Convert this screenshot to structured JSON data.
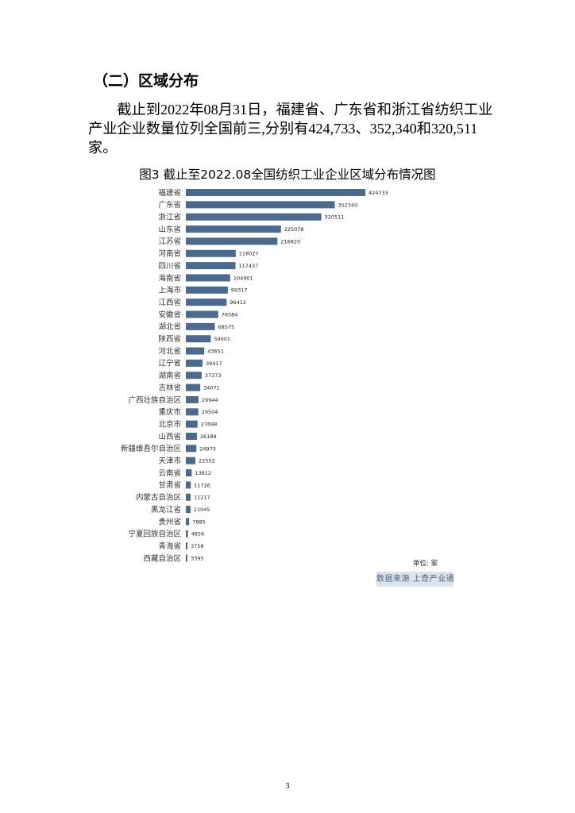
{
  "section": {
    "heading": "（二）区域分布",
    "paragraph": "截止到2022年08月31日，福建省、广东省和浙江省纺织工业产业企业数量位列全国前三,分别有424,733、352,340和320,511家。"
  },
  "chart_data": {
    "type": "bar",
    "orientation": "horizontal",
    "title": "图3 截止至2022.08全国纺织工业企业区域分布情况图",
    "unit_label": "单位: 家",
    "source_label": "数据来源 上奇产业通",
    "bar_color": "#4b6a8e",
    "categories": [
      "福建省",
      "广东省",
      "浙江省",
      "山东省",
      "江苏省",
      "河南省",
      "四川省",
      "海南省",
      "上海市",
      "江西省",
      "安徽省",
      "湖北省",
      "陕西省",
      "河北省",
      "辽宁省",
      "湖南省",
      "吉林省",
      "广西壮族自治区",
      "重庆市",
      "北京市",
      "山西省",
      "新疆维吾尔自治区",
      "天津市",
      "云南省",
      "甘肃省",
      "内蒙古自治区",
      "黑龙江省",
      "贵州省",
      "宁夏回族自治区",
      "青海省",
      "西藏自治区"
    ],
    "values": [
      424733,
      352340,
      320511,
      225078,
      216820,
      118027,
      117437,
      104901,
      99317,
      96412,
      76584,
      68575,
      59001,
      43651,
      39417,
      37373,
      34071,
      29944,
      29504,
      27698,
      26189,
      24975,
      22552,
      13812,
      11726,
      11217,
      11045,
      7885,
      4856,
      3758,
      3395
    ],
    "value_labels": [
      "424733",
      "352340",
      "320511",
      "225078",
      "216820",
      "118027",
      "117437",
      "104901",
      "99317",
      "96412",
      "76584",
      "68575",
      "59001",
      "43651",
      "39417",
      "37373",
      "34071",
      "29944",
      "29504",
      "27698",
      "26189",
      "24975",
      "22552",
      "13812",
      "11726",
      "11217",
      "11045",
      "7885",
      "4856",
      "3758",
      "3395"
    ],
    "xlim": [
      0,
      424733
    ],
    "grid": false,
    "legend": "none"
  },
  "footer": {
    "page_number": "3"
  }
}
